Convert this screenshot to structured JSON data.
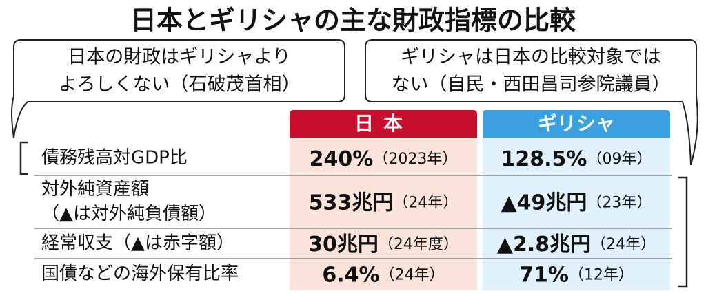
{
  "title": "日本とギリシャの主な財政指標の比較",
  "quotes": [
    {
      "lines": [
        "日本の財政はギリシャより",
        "よろしくない（石破茂首相）"
      ]
    },
    {
      "lines": [
        "ギリシャは日本の比較対象では",
        "ない（自民・西田昌司参院議員）"
      ]
    }
  ],
  "table": {
    "header": [
      "日本",
      "ギリシャ"
    ],
    "rows": [
      {
        "label": [
          "債務残高対GDP比"
        ],
        "cells": [
          {
            "value": "240%",
            "note": "（2023年）"
          },
          {
            "value": "128.5%",
            "note": "（09年）"
          }
        ]
      },
      {
        "label": [
          "対外純資産額",
          "（▲は対外純負債額）"
        ],
        "cells": [
          {
            "value": "533兆円",
            "note": "（24年）"
          },
          {
            "value": "▲49兆円",
            "note": "（23年）"
          }
        ]
      },
      {
        "label": [
          "経常収支（▲は赤字額）"
        ],
        "cells": [
          {
            "value": "30兆円",
            "note": "（24年度）"
          },
          {
            "value": "▲2.8兆円",
            "note": "（24年）"
          }
        ]
      },
      {
        "label": [
          "国債などの海外保有比率"
        ],
        "cells": [
          {
            "value": "6.4%",
            "note": "（24年）"
          },
          {
            "value": "71%",
            "note": "（12年）"
          }
        ]
      }
    ]
  }
}
